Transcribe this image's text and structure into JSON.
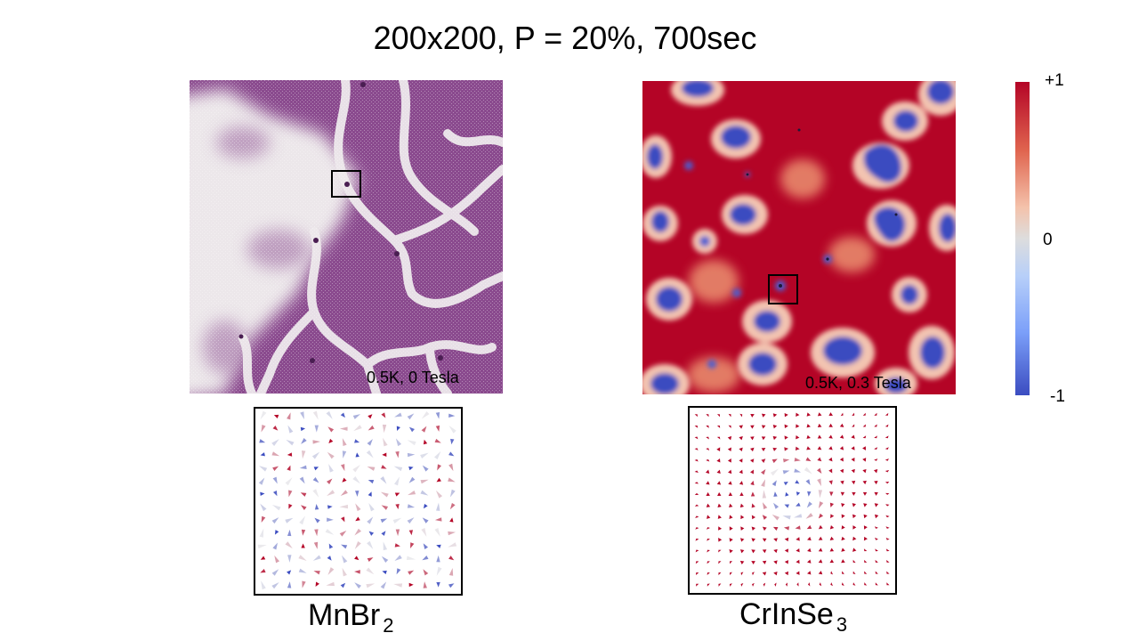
{
  "title": "200x200, P = 20%, 700sec",
  "panels": [
    {
      "material_base": "MnBr",
      "material_sub": "2",
      "condition": "0.5K, 0 Tesla"
    },
    {
      "material_base": "CrInSe",
      "material_sub": "3",
      "condition": "0.5K, 0.3 Tesla"
    }
  ],
  "colorbar": {
    "max_label": "+1",
    "mid_label": "0",
    "min_label": "-1"
  },
  "colors": {
    "red": "#b40426",
    "blue": "#3b4cc0",
    "purple": "#7d3c84",
    "neutral": "#dddddd"
  }
}
